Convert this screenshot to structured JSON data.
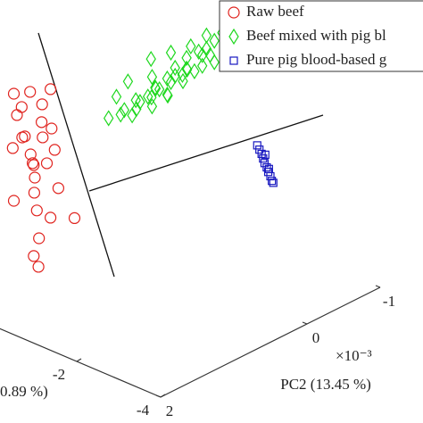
{
  "chart_data": {
    "type": "scatter3d",
    "xlabel": "0.89 %)",
    "ylabel": "PC2 (13.45 %)",
    "y_exponent": "×10⁻³",
    "xlim": [
      -4,
      0
    ],
    "ylim": [
      -1,
      2
    ],
    "zlim": [
      0,
      1.2
    ],
    "xticks": [
      -4,
      -2
    ],
    "yticks": [
      2,
      0,
      -1
    ],
    "series": [
      {
        "name": "Raw beef",
        "color": "#e0231e",
        "marker": "circle",
        "x": [
          -1.2,
          -0.8,
          -0.5,
          -1.0,
          -0.6,
          -1.4,
          -0.9,
          -0.4,
          -1.1,
          -0.7,
          -1.3,
          -0.5,
          -0.9,
          -1.2,
          -0.3,
          -0.8,
          -1.0,
          -0.6,
          -1.3,
          -0.9,
          -0.5,
          -1.2,
          -0.7,
          -1.1,
          -0.8,
          -1.0,
          -0.9
        ],
        "y": [
          1.9,
          1.95,
          2,
          1.9,
          1.95,
          2,
          1.85,
          1.9,
          1.95,
          2,
          1.9,
          1.85,
          2,
          1.95,
          1.9,
          1.9,
          2,
          1.8,
          1.85,
          1.95,
          2,
          1.9,
          1.8,
          2,
          1.9,
          1.95,
          1.4
        ],
        "z": [
          0.95,
          0.92,
          0.9,
          0.88,
          0.85,
          0.83,
          0.8,
          0.8,
          0.77,
          0.75,
          0.73,
          0.72,
          0.7,
          0.68,
          0.67,
          0.64,
          0.62,
          0.62,
          0.58,
          0.55,
          0.5,
          0.47,
          0.45,
          0.4,
          0.3,
          0.28,
          0.38
        ]
      },
      {
        "name": "Beef mixed with pig bl",
        "color": "#1fd81f",
        "marker": "diamond",
        "x": [
          -2.2,
          -2.5,
          -2.8,
          -3.0,
          -2.4,
          -2.0,
          -2.6,
          -3.1,
          -2.3,
          -2.7,
          -1.9,
          -2.9,
          -2.5,
          -2.1,
          -2.8,
          -3.2,
          -2.4,
          -2.6,
          -2.0,
          -2.9,
          -2.3,
          -2.7,
          -3.0,
          -2.2,
          -2.5,
          -1.8,
          -2.6,
          -3.1,
          -2.4,
          -2.8,
          -2.1,
          -2.3,
          -2.7,
          -2.9,
          -2.5,
          -2.0,
          -2.6,
          -3.0,
          -2.2,
          -2.4
        ],
        "y": [
          1.1,
          1.0,
          0.9,
          0.8,
          1.2,
          1.3,
          1.0,
          0.75,
          1.1,
          0.9,
          1.4,
          0.85,
          1.05,
          1.25,
          0.95,
          0.7,
          1.15,
          1.0,
          1.35,
          0.8,
          1.2,
          0.9,
          0.8,
          1.3,
          1.0,
          1.45,
          1.1,
          0.75,
          1.2,
          0.85,
          1.3,
          1.15,
          0.95,
          0.8,
          1.05,
          1.4,
          0.9,
          0.75,
          1.25,
          1.1
        ],
        "z": [
          1.02,
          1.05,
          1.08,
          1.12,
          0.98,
          0.95,
          1.0,
          1.1,
          0.92,
          1.03,
          0.9,
          1.06,
          0.96,
          0.88,
          1.0,
          1.13,
          0.93,
          0.97,
          0.85,
          1.04,
          0.9,
          0.99,
          1.07,
          0.86,
          0.94,
          0.82,
          0.91,
          1.02,
          0.87,
          0.98,
          0.83,
          0.89,
          0.95,
          1.0,
          0.9,
          0.84,
          0.96,
          1.04,
          0.88,
          0.92
        ]
      },
      {
        "name": "Pure pig blood-based g",
        "color": "#1818c0",
        "marker": "square",
        "x": [
          -4,
          -4,
          -4,
          -4,
          -4,
          -4,
          -4,
          -4,
          -4,
          -4,
          -4,
          -4
        ],
        "y": [
          0.68,
          0.65,
          0.62,
          0.6,
          0.58,
          0.55,
          0.53,
          0.5,
          0.48,
          0.46,
          0.57,
          0.52
        ],
        "z": [
          0.76,
          0.74,
          0.72,
          0.7,
          0.68,
          0.66,
          0.64,
          0.62,
          0.6,
          0.59,
          0.71,
          0.65
        ]
      }
    ]
  }
}
